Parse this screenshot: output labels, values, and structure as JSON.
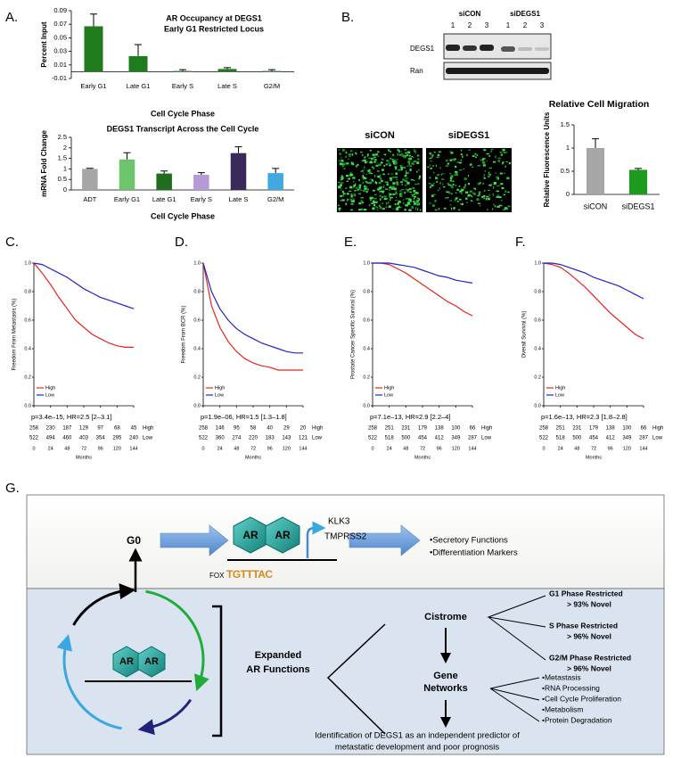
{
  "panel_labels": [
    "A.",
    "B.",
    "C.",
    "D.",
    "E.",
    "F.",
    "G."
  ],
  "chart_data": [
    {
      "type": "bar",
      "title": [
        "AR Occupancy at DEGS1",
        "Early G1 Restricted Locus"
      ],
      "ylabel": "Percent Input",
      "xlabel": "Cell Cycle Phase",
      "categories": [
        "Early G1",
        "Late G1",
        "Early S",
        "Late S",
        "G2/M"
      ],
      "values": [
        0.067,
        0.023,
        0.001,
        0.004,
        0.001
      ],
      "errors": [
        0.018,
        0.017,
        0.002,
        0.002,
        0.002
      ],
      "color": "#1e7b1e",
      "ylim": [
        -0.01,
        0.09
      ],
      "yticks": [
        -0.01,
        0.01,
        0.03,
        0.05,
        0.07,
        0.09
      ],
      "grid": false
    },
    {
      "type": "bar",
      "title": "DEGS1 Transcript Across the Cell Cycle",
      "ylabel": "mRNA Fold Change",
      "xlabel": "Cell Cycle Phase",
      "categories": [
        "ADT",
        "Early G1",
        "Late G1",
        "Early S",
        "Late S",
        "G2/M"
      ],
      "values": [
        1.0,
        1.45,
        0.78,
        0.72,
        1.75,
        0.8
      ],
      "errors": [
        0.03,
        0.32,
        0.12,
        0.1,
        0.3,
        0.22
      ],
      "colors": [
        "#a6a6a6",
        "#6cc46c",
        "#1e6e1e",
        "#b69ad8",
        "#3a2a5a",
        "#3fa9e0"
      ],
      "ylim": [
        0,
        2.5
      ],
      "yticks": [
        0,
        0.5,
        1,
        1.5,
        2,
        2.5
      ],
      "grid": false
    },
    {
      "type": "bar",
      "title": "Relative Cell Migration",
      "ylabel": "Relative Fluorescence Units",
      "categories": [
        "siCON",
        "siDEGS1"
      ],
      "values": [
        1.0,
        0.53
      ],
      "errors": [
        0.2,
        0.03
      ],
      "colors": [
        "#a6a6a6",
        "#1e9a1e"
      ],
      "ylim": [
        0,
        1.5
      ],
      "yticks": [
        0,
        0.5,
        1,
        1.5
      ],
      "grid": false
    },
    {
      "type": "line",
      "ylabel": "Freedom From Metastasis (%)",
      "xlabel": "Months",
      "annotation": "p=3.4e–15, HR=2.5 [2–3.1]",
      "x": [
        0,
        12,
        24,
        36,
        48,
        60,
        72,
        84,
        96,
        108,
        120,
        132,
        144
      ],
      "series": [
        {
          "name": "High",
          "color": "#e8241f",
          "values": [
            1,
            0.93,
            0.85,
            0.76,
            0.68,
            0.6,
            0.55,
            0.5,
            0.47,
            0.44,
            0.42,
            0.41,
            0.41
          ]
        },
        {
          "name": "Low",
          "color": "#2222cc",
          "values": [
            1,
            0.99,
            0.96,
            0.93,
            0.9,
            0.86,
            0.82,
            0.79,
            0.76,
            0.74,
            0.72,
            0.7,
            0.68
          ]
        }
      ],
      "xlim": [
        0,
        144
      ],
      "ylim": [
        0,
        1
      ],
      "xticks": [
        0,
        24,
        48,
        72,
        96,
        120,
        144
      ],
      "yticks": [
        {
          "value": 0,
          "label": "0.0"
        },
        {
          "value": 0.2,
          "label": "0.2"
        },
        {
          "value": 0.4,
          "label": "0.4"
        },
        {
          "value": 0.6,
          "label": "0.6"
        },
        {
          "value": 0.8,
          "label": "0.8"
        },
        {
          "value": 1,
          "label": "1.0"
        }
      ],
      "legend": "lower left",
      "risk_table": [
        {
          "name": "High",
          "values": [
            258,
            230,
            187,
            129,
            97,
            68,
            45
          ]
        },
        {
          "name": "Low",
          "values": [
            522,
            494,
            460,
            403,
            354,
            295,
            240
          ]
        }
      ]
    },
    {
      "type": "line",
      "ylabel": "Freedom From BCR (%)",
      "xlabel": "Months",
      "annotation": "p=1.9e–06, HR=1.5 [1.3–1.8]",
      "x": [
        0,
        12,
        24,
        36,
        48,
        60,
        72,
        84,
        96,
        108,
        120,
        132,
        144
      ],
      "series": [
        {
          "name": "High",
          "color": "#e8241f",
          "values": [
            1,
            0.7,
            0.55,
            0.45,
            0.38,
            0.33,
            0.3,
            0.28,
            0.27,
            0.25,
            0.25,
            0.25,
            0.25
          ]
        },
        {
          "name": "Low",
          "color": "#2222cc",
          "values": [
            1,
            0.8,
            0.68,
            0.6,
            0.54,
            0.5,
            0.47,
            0.44,
            0.42,
            0.4,
            0.38,
            0.37,
            0.37
          ]
        }
      ],
      "xlim": [
        0,
        144
      ],
      "ylim": [
        0,
        1
      ],
      "xticks": [
        0,
        24,
        48,
        72,
        96,
        120,
        144
      ],
      "yticks": [
        {
          "value": 0,
          "label": "0.0"
        },
        {
          "value": 0.2,
          "label": "0.2"
        },
        {
          "value": 0.4,
          "label": "0.4"
        },
        {
          "value": 0.6,
          "label": "0.6"
        },
        {
          "value": 0.8,
          "label": "0.8"
        },
        {
          "value": 1,
          "label": "1.0"
        }
      ],
      "legend": "lower left",
      "risk_table": [
        {
          "name": "High",
          "values": [
            258,
            146,
            95,
            58,
            40,
            29,
            20
          ]
        },
        {
          "name": "Low",
          "values": [
            522,
            360,
            274,
            220,
            183,
            143,
            121
          ]
        }
      ]
    },
    {
      "type": "line",
      "ylabel": "Prostate Cancer Specific Survival (%)",
      "xlabel": "Months",
      "annotation": "p=7.1e–13, HR=2.9 [2.2–4]",
      "x": [
        0,
        12,
        24,
        36,
        48,
        60,
        72,
        84,
        96,
        108,
        120,
        132,
        144
      ],
      "series": [
        {
          "name": "High",
          "color": "#e8241f",
          "values": [
            1,
            1,
            0.99,
            0.96,
            0.93,
            0.89,
            0.85,
            0.81,
            0.77,
            0.73,
            0.7,
            0.66,
            0.63
          ]
        },
        {
          "name": "Low",
          "color": "#2222cc",
          "values": [
            1,
            1,
            1,
            0.99,
            0.98,
            0.97,
            0.95,
            0.93,
            0.91,
            0.9,
            0.88,
            0.87,
            0.86
          ]
        }
      ],
      "xlim": [
        0,
        144
      ],
      "ylim": [
        0,
        1
      ],
      "xticks": [
        0,
        24,
        48,
        72,
        96,
        120,
        144
      ],
      "yticks": [
        {
          "value": 0,
          "label": "0.0"
        },
        {
          "value": 0.2,
          "label": "0.2"
        },
        {
          "value": 0.4,
          "label": "0.4"
        },
        {
          "value": 0.6,
          "label": "0.6"
        },
        {
          "value": 0.8,
          "label": "0.8"
        },
        {
          "value": 1,
          "label": "1.0"
        }
      ],
      "legend": "lower left",
      "risk_table": [
        {
          "name": "High",
          "values": [
            258,
            251,
            231,
            179,
            138,
            100,
            66
          ]
        },
        {
          "name": "Low",
          "values": [
            522,
            518,
            500,
            454,
            412,
            349,
            287
          ]
        }
      ]
    },
    {
      "type": "line",
      "ylabel": "Overall Survival (%)",
      "xlabel": "Months",
      "annotation": "p=1.6e–13, HR=2.3 [1.8–2.8]",
      "x": [
        0,
        12,
        24,
        36,
        48,
        60,
        72,
        84,
        96,
        108,
        120,
        132,
        144
      ],
      "series": [
        {
          "name": "High",
          "color": "#e8241f",
          "values": [
            1,
            0.99,
            0.97,
            0.93,
            0.88,
            0.83,
            0.77,
            0.71,
            0.65,
            0.6,
            0.55,
            0.5,
            0.47
          ]
        },
        {
          "name": "Low",
          "color": "#2222cc",
          "values": [
            1,
            1,
            0.99,
            0.97,
            0.95,
            0.93,
            0.9,
            0.88,
            0.86,
            0.84,
            0.81,
            0.78,
            0.75
          ]
        }
      ],
      "xlim": [
        0,
        144
      ],
      "ylim": [
        0,
        1
      ],
      "xticks": [
        0,
        24,
        48,
        72,
        96,
        120,
        144
      ],
      "yticks": [
        {
          "value": 0,
          "label": "0.0"
        },
        {
          "value": 0.2,
          "label": "0.2"
        },
        {
          "value": 0.4,
          "label": "0.4"
        },
        {
          "value": 0.6,
          "label": "0.6"
        },
        {
          "value": 0.8,
          "label": "0.8"
        },
        {
          "value": 1,
          "label": "1.0"
        }
      ],
      "legend": "lower left",
      "risk_table": [
        {
          "name": "High",
          "values": [
            258,
            251,
            231,
            179,
            138,
            100,
            66
          ]
        },
        {
          "name": "Low",
          "values": [
            522,
            518,
            500,
            454,
            412,
            349,
            287
          ]
        }
      ]
    }
  ],
  "blot": {
    "groups": [
      "siCON",
      "siDEGS1"
    ],
    "lanes": [
      "1",
      "2",
      "3"
    ],
    "rows": [
      "DEGS1",
      "Ran"
    ]
  },
  "microscopy": [
    "siCON",
    "siDEGS1"
  ],
  "diagram": {
    "g0": "G0",
    "ar": "AR",
    "targets": [
      "KLK3",
      "TMPRSS2"
    ],
    "fox": "FOX",
    "motif": "TGTTTAC",
    "outputs": [
      "•Secretory Functions",
      "•Differentiation Markers"
    ],
    "expanded": [
      "Expanded",
      "AR Functions"
    ],
    "cistrome": "Cistrome",
    "phases": [
      {
        "name": "G1 Phase Restricted",
        "novel": "> 93% Novel",
        "color": "#1e7b1e"
      },
      {
        "name": "S Phase Restricted",
        "novel": "> 96% Novel",
        "color": "#9a4fd0"
      },
      {
        "name": "G2/M Phase Restricted",
        "novel": "> 96% Novel",
        "color": "#2a9ad8"
      }
    ],
    "networks": [
      "Gene",
      "Networks"
    ],
    "network_items": [
      "•Metastasis",
      "•RNA Processing",
      "•Cell Cycle Proliferation",
      "•Metabolism",
      "•Protein Degradation"
    ],
    "conclusion": [
      "Identification of DEGS1 as an independent predictor of",
      "metastatic development and poor prognosis"
    ]
  }
}
